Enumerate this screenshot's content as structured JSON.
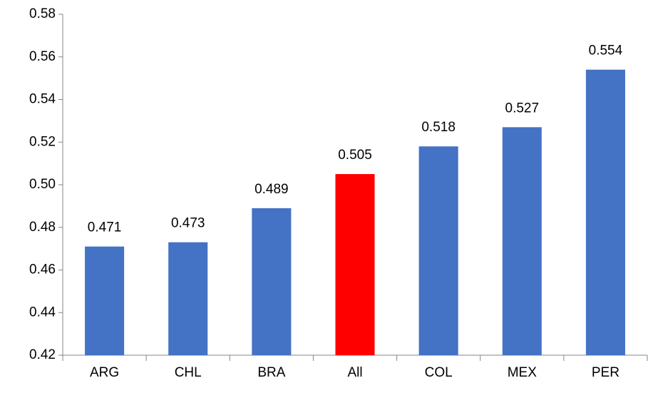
{
  "chart_data": {
    "type": "bar",
    "categories": [
      "ARG",
      "CHL",
      "BRA",
      "All",
      "COL",
      "MEX",
      "PER"
    ],
    "values": [
      0.471,
      0.473,
      0.489,
      0.505,
      0.518,
      0.527,
      0.554
    ],
    "colors": [
      "#4472c4",
      "#4472c4",
      "#4472c4",
      "#ff0000",
      "#4472c4",
      "#4472c4",
      "#4472c4"
    ],
    "ylim": [
      0.42,
      0.58
    ],
    "yticks": [
      0.42,
      0.44,
      0.46,
      0.48,
      {
        "value": 0.5,
        "label": "0.50"
      },
      0.52,
      0.54,
      0.56,
      0.58
    ],
    "grid": false
  }
}
